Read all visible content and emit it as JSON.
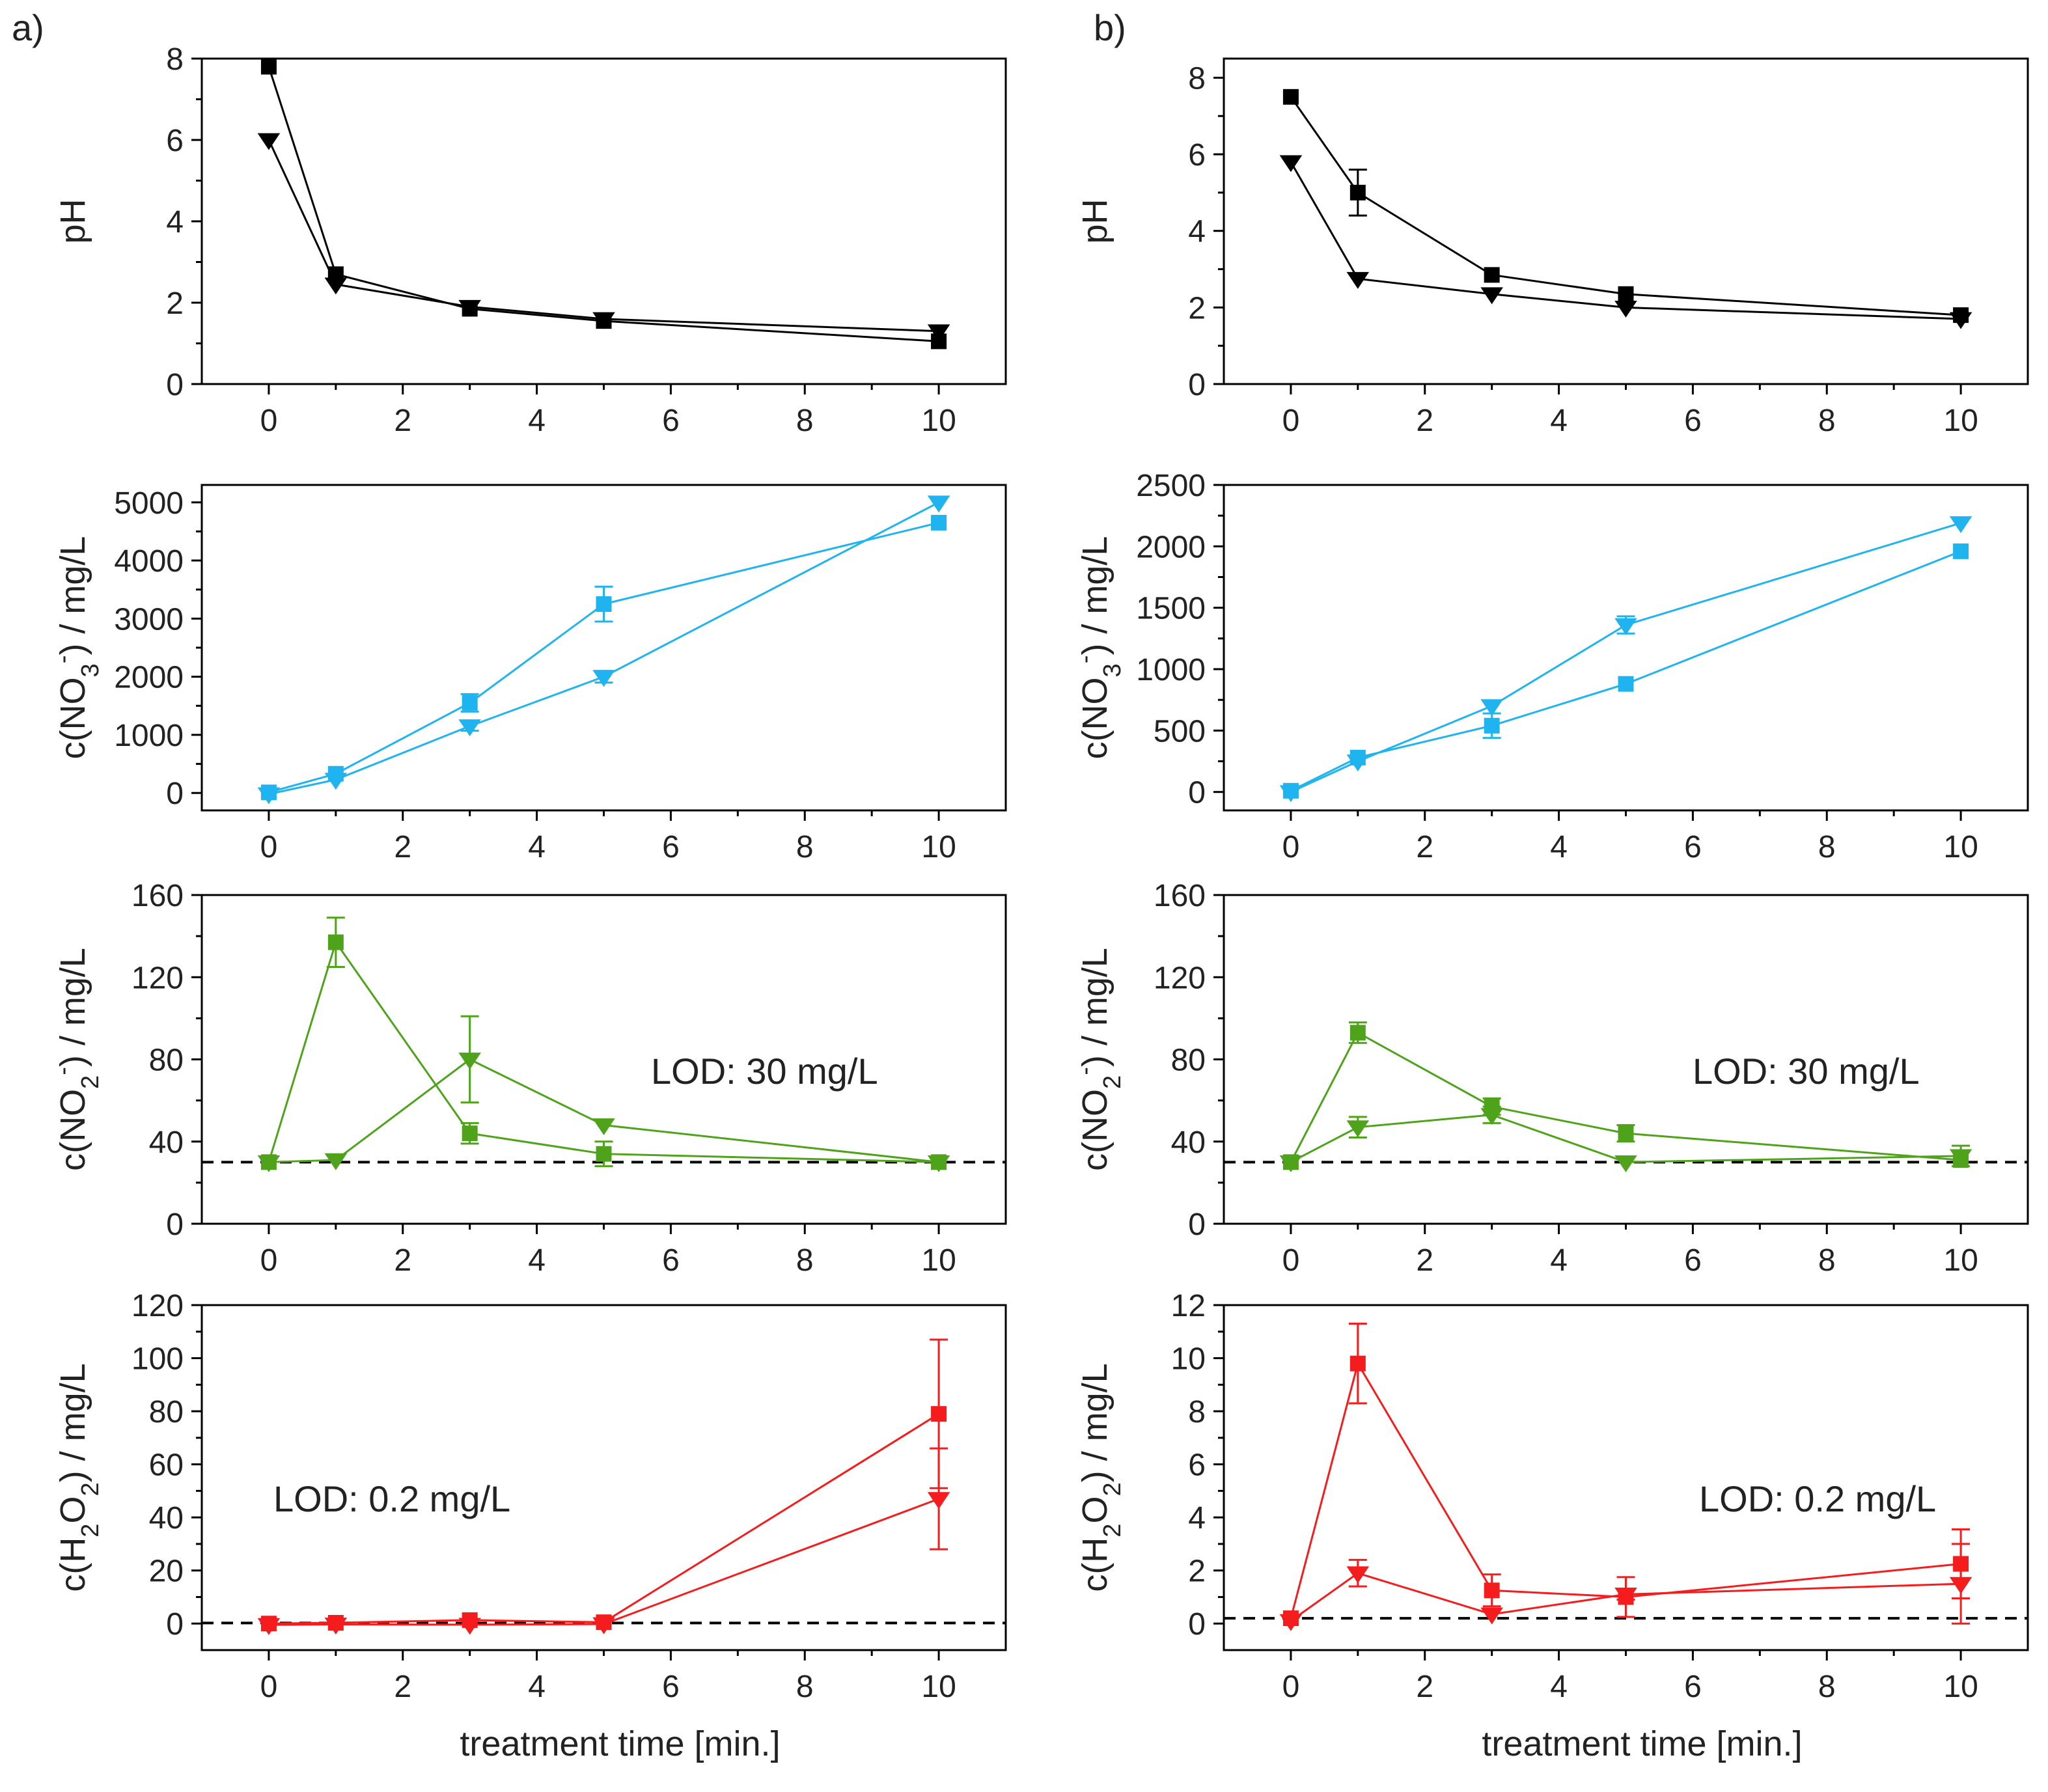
{
  "figure_title": "",
  "colors": {
    "black": "#000000",
    "blue": "#1fb4f0",
    "green": "#4fa31a",
    "red": "#f41c1c",
    "axis": "#000000"
  },
  "chart_data": [
    {
      "id": "a1",
      "column": "a",
      "row": 0,
      "panel_label": "a)",
      "type": "line",
      "title": "",
      "xlabel": "",
      "ylabel": "pH",
      "xlim": [
        -1,
        11
      ],
      "ylim": [
        0,
        8
      ],
      "xticks": [
        0,
        2,
        4,
        6,
        8,
        10
      ],
      "yticks": [
        0,
        2,
        4,
        6,
        8
      ],
      "color_key": "black",
      "x": [
        0,
        1,
        3,
        5,
        10
      ],
      "series": [
        {
          "name": "square",
          "marker": "square",
          "values": [
            7.8,
            2.7,
            1.85,
            1.55,
            1.05
          ],
          "errors": [
            0.05,
            0.05,
            0.05,
            0.05,
            0.1
          ]
        },
        {
          "name": "triangle",
          "marker": "triangle-down",
          "values": [
            6.0,
            2.45,
            1.9,
            1.6,
            1.3
          ],
          "errors": [
            0.05,
            0.05,
            0.05,
            0.05,
            0.05
          ]
        }
      ]
    },
    {
      "id": "a2",
      "column": "a",
      "row": 1,
      "type": "line",
      "title": "",
      "xlabel": "",
      "ylabel": "c(NO3-) / mg/L",
      "ylabel_parts": {
        "pre": "c(NO",
        "sub": "3",
        "sup": "-",
        "post": ") / mg/L"
      },
      "xlim": [
        -1,
        11
      ],
      "ylim": [
        -300,
        5300
      ],
      "xticks": [
        0,
        2,
        4,
        6,
        8,
        10
      ],
      "yticks": [
        0,
        1000,
        2000,
        3000,
        4000,
        5000
      ],
      "color_key": "blue",
      "x": [
        0,
        1,
        3,
        5,
        10
      ],
      "series": [
        {
          "name": "square",
          "marker": "square",
          "values": [
            10,
            330,
            1550,
            3250,
            4650
          ],
          "errors": [
            20,
            40,
            150,
            300,
            60
          ]
        },
        {
          "name": "triangle",
          "marker": "triangle-down",
          "values": [
            -20,
            230,
            1150,
            2000,
            5000
          ],
          "errors": [
            20,
            30,
            80,
            100,
            60
          ]
        }
      ]
    },
    {
      "id": "a3",
      "column": "a",
      "row": 2,
      "type": "line",
      "title": "",
      "xlabel": "",
      "ylabel": "c(NO2-) / mg/L",
      "ylabel_parts": {
        "pre": "c(NO",
        "sub": "2",
        "sup": "-",
        "post": ") / mg/L"
      },
      "xlim": [
        -1,
        11
      ],
      "ylim": [
        0,
        160
      ],
      "xticks": [
        0,
        2,
        4,
        6,
        8,
        10
      ],
      "yticks": [
        0,
        40,
        80,
        120,
        160
      ],
      "color_key": "green",
      "lod": 30,
      "annotation": "LOD: 30 mg/L",
      "x": [
        0,
        1,
        3,
        5,
        10
      ],
      "series": [
        {
          "name": "square",
          "marker": "square",
          "values": [
            30,
            137,
            44,
            34,
            30
          ],
          "errors": [
            1,
            12,
            5,
            6,
            2
          ]
        },
        {
          "name": "triangle",
          "marker": "triangle-down",
          "values": [
            30,
            31,
            80,
            48,
            30
          ],
          "errors": [
            1,
            1,
            21,
            2,
            1
          ]
        }
      ]
    },
    {
      "id": "a4",
      "column": "a",
      "row": 3,
      "type": "line",
      "title": "",
      "xlabel": "treatment time [min.]",
      "ylabel": "c(H2O2) / mg/L",
      "ylabel_parts": {
        "pre": "c(H",
        "sub": "2",
        "mid": "O",
        "sub2": "2",
        "post": ") / mg/L"
      },
      "xlim": [
        -1,
        11
      ],
      "ylim": [
        -10,
        120
      ],
      "xticks": [
        0,
        2,
        4,
        6,
        8,
        10
      ],
      "yticks": [
        0,
        20,
        40,
        60,
        80,
        100,
        120
      ],
      "color_key": "red",
      "lod": 0.2,
      "annotation": "LOD: 0.2 mg/L",
      "x": [
        0,
        1,
        3,
        5,
        10
      ],
      "series": [
        {
          "name": "square",
          "marker": "square",
          "values": [
            0,
            0.3,
            1.3,
            0.5,
            79
          ],
          "errors": [
            0.5,
            0.5,
            1,
            0.5,
            28
          ]
        },
        {
          "name": "triangle",
          "marker": "triangle-down",
          "values": [
            -0.5,
            -0.3,
            -0.4,
            -0.2,
            47
          ],
          "errors": [
            0.3,
            0.3,
            0.3,
            0.3,
            19
          ]
        }
      ]
    },
    {
      "id": "b1",
      "column": "b",
      "row": 0,
      "panel_label": "b)",
      "type": "line",
      "title": "",
      "xlabel": "",
      "ylabel": "pH",
      "xlim": [
        -1,
        11
      ],
      "ylim": [
        0,
        8.5
      ],
      "xticks": [
        0,
        2,
        4,
        6,
        8,
        10
      ],
      "yticks": [
        0,
        2,
        4,
        6,
        8
      ],
      "color_key": "black",
      "x": [
        0,
        1,
        3,
        5,
        10
      ],
      "series": [
        {
          "name": "square",
          "marker": "square",
          "values": [
            7.5,
            5.0,
            2.85,
            2.35,
            1.8
          ],
          "errors": [
            0.05,
            0.6,
            0.1,
            0.1,
            0.05
          ]
        },
        {
          "name": "triangle",
          "marker": "triangle-down",
          "values": [
            5.8,
            2.75,
            2.35,
            2.0,
            1.7
          ],
          "errors": [
            0.05,
            0.05,
            0.05,
            0.05,
            0.05
          ]
        }
      ]
    },
    {
      "id": "b2",
      "column": "b",
      "row": 1,
      "type": "line",
      "title": "",
      "xlabel": "",
      "ylabel": "c(NO3-) / mg/L",
      "ylabel_parts": {
        "pre": "c(NO",
        "sub": "3",
        "sup": "-",
        "post": ") / mg/L"
      },
      "xlim": [
        -1,
        11
      ],
      "ylim": [
        -150,
        2500
      ],
      "xticks": [
        0,
        2,
        4,
        6,
        8,
        10
      ],
      "yticks": [
        0,
        500,
        1000,
        1500,
        2000,
        2500
      ],
      "color_key": "blue",
      "x": [
        0,
        1,
        3,
        5,
        10
      ],
      "series": [
        {
          "name": "square",
          "marker": "square",
          "values": [
            10,
            280,
            540,
            880,
            1960
          ],
          "errors": [
            10,
            30,
            100,
            30,
            30
          ]
        },
        {
          "name": "triangle",
          "marker": "triangle-down",
          "values": [
            0,
            250,
            700,
            1360,
            2190
          ],
          "errors": [
            10,
            30,
            30,
            70,
            30
          ]
        }
      ]
    },
    {
      "id": "b3",
      "column": "b",
      "row": 2,
      "type": "line",
      "title": "",
      "xlabel": "",
      "ylabel": "c(NO2-) / mg/L",
      "ylabel_parts": {
        "pre": "c(NO",
        "sub": "2",
        "sup": "-",
        "post": ") / mg/L"
      },
      "xlim": [
        -1,
        11
      ],
      "ylim": [
        0,
        160
      ],
      "xticks": [
        0,
        2,
        4,
        6,
        8,
        10
      ],
      "yticks": [
        0,
        40,
        80,
        120,
        160
      ],
      "color_key": "green",
      "lod": 30,
      "annotation": "LOD: 30 mg/L",
      "x": [
        0,
        1,
        3,
        5,
        10
      ],
      "series": [
        {
          "name": "square",
          "marker": "square",
          "values": [
            30,
            93,
            57,
            44,
            31
          ],
          "errors": [
            1,
            5,
            4,
            4,
            2
          ]
        },
        {
          "name": "triangle",
          "marker": "triangle-down",
          "values": [
            30,
            47,
            53,
            30,
            33
          ],
          "errors": [
            1,
            5,
            4,
            1,
            5
          ]
        }
      ]
    },
    {
      "id": "b4",
      "column": "b",
      "row": 3,
      "type": "line",
      "title": "",
      "xlabel": "treatment time [min.]",
      "ylabel": "c(H2O2) / mg/L",
      "ylabel_parts": {
        "pre": "c(H",
        "sub": "2",
        "mid": "O",
        "sub2": "2",
        "post": ") / mg/L"
      },
      "xlim": [
        -1,
        11
      ],
      "ylim": [
        -1,
        12
      ],
      "xticks": [
        0,
        2,
        4,
        6,
        8,
        10
      ],
      "yticks": [
        0,
        2,
        4,
        6,
        8,
        10,
        12
      ],
      "color_key": "red",
      "lod": 0.2,
      "annotation": "LOD: 0.2 mg/L",
      "x": [
        0,
        1,
        3,
        5,
        10
      ],
      "series": [
        {
          "name": "square",
          "marker": "square",
          "values": [
            0.2,
            9.8,
            1.25,
            1.0,
            2.25
          ],
          "errors": [
            0.1,
            1.5,
            0.6,
            0.75,
            1.3
          ]
        },
        {
          "name": "triangle",
          "marker": "triangle-down",
          "values": [
            0.1,
            1.9,
            0.35,
            1.1,
            1.5
          ],
          "errors": [
            0.1,
            0.5,
            0.1,
            0.2,
            1.5
          ]
        }
      ]
    }
  ]
}
